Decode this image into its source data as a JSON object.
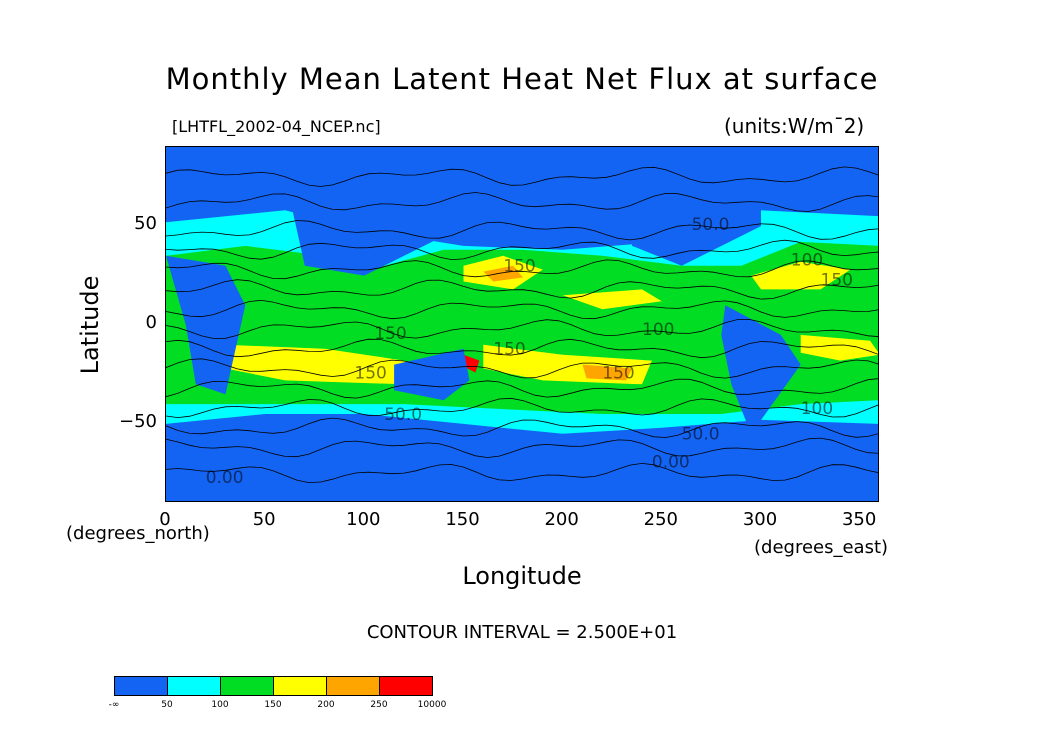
{
  "title": "Monthly Mean Latent Heat Net Flux at surface",
  "subtitle_left": "[LHTFL_2002-04_NCEP.nc]",
  "subtitle_right": "(units:W/m¯2)",
  "contour_note": "CONTOUR INTERVAL = 2.500E+01",
  "colors": {
    "band_lt50": "#1464F4",
    "band_50_100": "#00FFFF",
    "band_100_150": "#00DD22",
    "band_150_200": "#FFFF00",
    "band_200_250": "#FFA500",
    "band_250_10000": "#FF0000"
  },
  "chart_data": {
    "type": "heatmap",
    "title": "Monthly Mean Latent Heat Net Flux at surface",
    "source_label": "[LHTFL_2002-04_NCEP.nc]",
    "units": "(units:W/m¯2)",
    "xlabel": "Longitude",
    "ylabel": "Latitude",
    "x_units": "(degrees_east)",
    "y_units": "(degrees_north)",
    "xlim": [
      0,
      360
    ],
    "ylim": [
      -90,
      90
    ],
    "x_ticks": [
      "0",
      "50",
      "100",
      "150",
      "200",
      "250",
      "300",
      "350"
    ],
    "y_ticks": [
      "50",
      "0",
      "−50"
    ],
    "contour_interval": 25,
    "contour_labels": [
      {
        "text": "150",
        "lon": 170,
        "lat": 27
      },
      {
        "text": "100",
        "lon": 240,
        "lat": -5
      },
      {
        "text": "150",
        "lon": 165,
        "lat": -15
      },
      {
        "text": "150",
        "lon": 220,
        "lat": -27
      },
      {
        "text": "100",
        "lon": 315,
        "lat": 30
      },
      {
        "text": "150",
        "lon": 330,
        "lat": 20
      },
      {
        "text": "100",
        "lon": 320,
        "lat": -45
      },
      {
        "text": "50.0",
        "lon": 110,
        "lat": -48
      },
      {
        "text": "50.0",
        "lon": 260,
        "lat": -58
      },
      {
        "text": "0.00",
        "lon": 245,
        "lat": -72
      },
      {
        "text": "0.00",
        "lon": 20,
        "lat": -80
      },
      {
        "text": "50.0",
        "lon": 265,
        "lat": 48
      },
      {
        "text": "150",
        "lon": 105,
        "lat": -7
      },
      {
        "text": "150",
        "lon": 95,
        "lat": -27
      }
    ],
    "colorbar": {
      "levels": [
        "-∞",
        "50",
        "100",
        "150",
        "200",
        "250",
        "10000"
      ],
      "colors": [
        "#1464F4",
        "#00FFFF",
        "#00DD22",
        "#FFFF00",
        "#FFA500",
        "#FF0000"
      ]
    }
  }
}
